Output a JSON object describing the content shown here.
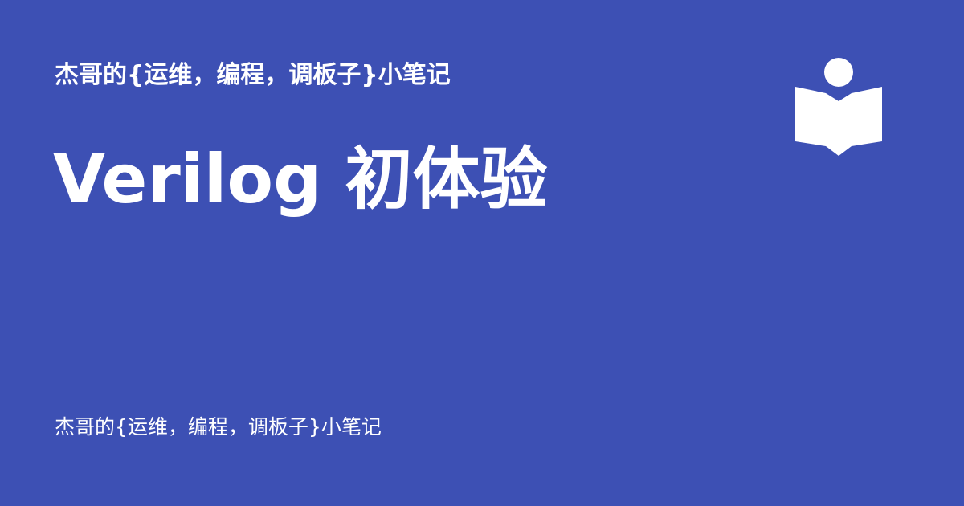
{
  "site": {
    "title_top": "杰哥的{运维，编程，调板子}小笔记",
    "title_bottom": "杰哥的{运维，编程，调板子}小笔记"
  },
  "post": {
    "title": "Verilog 初体验"
  },
  "logo": {
    "icon": "reading-book-icon"
  },
  "colors": {
    "background": "#3d50b4",
    "foreground": "#ffffff"
  }
}
